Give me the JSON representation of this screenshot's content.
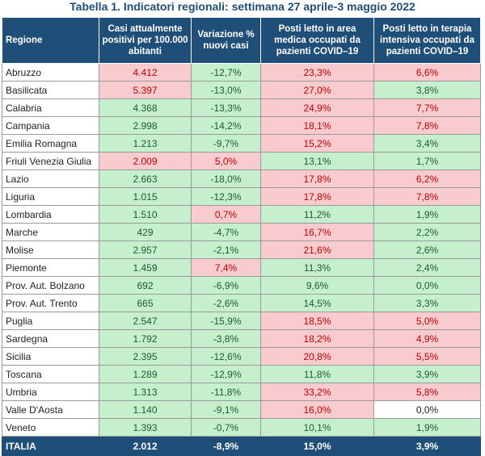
{
  "title": "Tabella 1. Indicatori regionali: settimana 27 aprile-3 maggio 2022",
  "headers": [
    "Regione",
    "Casi attualmente positivi per 100.000 abitanti",
    "Variazione % nuovi casi",
    "Posti letto in area medica occupati da pazienti COVID–19",
    "Posti letto in terapia intensiva occupati da pazienti COVID–19"
  ],
  "colors": {
    "header_bg": "#1f4e79",
    "red_cell": "#f8cbcf",
    "green_cell": "#c6efce"
  },
  "rows": [
    {
      "region": "Abruzzo",
      "cases": "4.412",
      "variation": "-12,7%",
      "medical": "23,3%",
      "icu": "6,6%",
      "status": [
        "red",
        "green",
        "red",
        "red"
      ]
    },
    {
      "region": "Basilicata",
      "cases": "5.397",
      "variation": "-13,0%",
      "medical": "27,0%",
      "icu": "3,8%",
      "status": [
        "red",
        "green",
        "red",
        "green"
      ]
    },
    {
      "region": "Calabria",
      "cases": "4.368",
      "variation": "-13,3%",
      "medical": "24,9%",
      "icu": "7,7%",
      "status": [
        "green",
        "green",
        "red",
        "red"
      ]
    },
    {
      "region": "Campania",
      "cases": "2.998",
      "variation": "-14,2%",
      "medical": "18,1%",
      "icu": "7,8%",
      "status": [
        "green",
        "green",
        "red",
        "red"
      ]
    },
    {
      "region": "Emilia Romagna",
      "cases": "1.213",
      "variation": "-9,7%",
      "medical": "15,2%",
      "icu": "3,4%",
      "status": [
        "green",
        "green",
        "red",
        "green"
      ]
    },
    {
      "region": "Friuli Venezia Giulia",
      "cases": "2.009",
      "variation": "5,0%",
      "medical": "13,1%",
      "icu": "1,7%",
      "status": [
        "red",
        "red",
        "green",
        "green"
      ]
    },
    {
      "region": "Lazio",
      "cases": "2.663",
      "variation": "-18,0%",
      "medical": "17,8%",
      "icu": "6,2%",
      "status": [
        "green",
        "green",
        "red",
        "red"
      ]
    },
    {
      "region": "Liguria",
      "cases": "1.015",
      "variation": "-12,3%",
      "medical": "17,8%",
      "icu": "7,8%",
      "status": [
        "green",
        "green",
        "red",
        "red"
      ]
    },
    {
      "region": "Lombardia",
      "cases": "1.510",
      "variation": "0,7%",
      "medical": "11,2%",
      "icu": "1,9%",
      "status": [
        "green",
        "red",
        "green",
        "green"
      ]
    },
    {
      "region": "Marche",
      "cases": "429",
      "variation": "-4,7%",
      "medical": "16,7%",
      "icu": "2,2%",
      "status": [
        "green",
        "green",
        "red",
        "green"
      ]
    },
    {
      "region": "Molise",
      "cases": "2.957",
      "variation": "-2,1%",
      "medical": "21,6%",
      "icu": "2,6%",
      "status": [
        "green",
        "green",
        "red",
        "green"
      ]
    },
    {
      "region": "Piemonte",
      "cases": "1.459",
      "variation": "7,4%",
      "medical": "11,3%",
      "icu": "2,4%",
      "status": [
        "green",
        "red",
        "green",
        "green"
      ]
    },
    {
      "region": "Prov. Aut. Bolzano",
      "cases": "692",
      "variation": "-6,9%",
      "medical": "9,6%",
      "icu": "0,0%",
      "status": [
        "green",
        "green",
        "green",
        "green"
      ]
    },
    {
      "region": "Prov. Aut. Trento",
      "cases": "665",
      "variation": "-2,6%",
      "medical": "14,5%",
      "icu": "3,3%",
      "status": [
        "green",
        "green",
        "green",
        "green"
      ]
    },
    {
      "region": "Puglia",
      "cases": "2.547",
      "variation": "-15,9%",
      "medical": "18,5%",
      "icu": "5,0%",
      "status": [
        "green",
        "green",
        "red",
        "red"
      ]
    },
    {
      "region": "Sardegna",
      "cases": "1.792",
      "variation": "-3,8%",
      "medical": "18,2%",
      "icu": "4,9%",
      "status": [
        "green",
        "green",
        "red",
        "red"
      ]
    },
    {
      "region": "Sicilia",
      "cases": "2.395",
      "variation": "-12,6%",
      "medical": "20,8%",
      "icu": "5,5%",
      "status": [
        "green",
        "green",
        "red",
        "red"
      ]
    },
    {
      "region": "Toscana",
      "cases": "1.289",
      "variation": "-12,9%",
      "medical": "11,8%",
      "icu": "3,9%",
      "status": [
        "green",
        "green",
        "green",
        "green"
      ]
    },
    {
      "region": "Umbria",
      "cases": "1.313",
      "variation": "-11,8%",
      "medical": "33,2%",
      "icu": "5,8%",
      "status": [
        "green",
        "green",
        "red",
        "red"
      ]
    },
    {
      "region": "Valle D'Aosta",
      "cases": "1.140",
      "variation": "-9,1%",
      "medical": "16,0%",
      "icu": "0,0%",
      "status": [
        "green",
        "green",
        "red",
        "white"
      ]
    },
    {
      "region": "Veneto",
      "cases": "1.393",
      "variation": "-0,7%",
      "medical": "10,1%",
      "icu": "1,9%",
      "status": [
        "green",
        "green",
        "green",
        "green"
      ]
    }
  ],
  "total": {
    "region": "ITALIA",
    "cases": "2.012",
    "variation": "-8,9%",
    "medical": "15,0%",
    "icu": "3,9%"
  }
}
